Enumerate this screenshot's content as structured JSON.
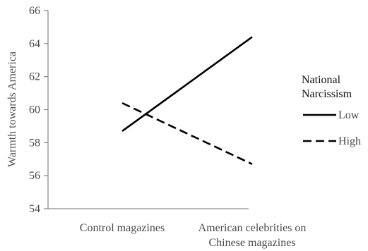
{
  "chart_data": {
    "type": "line",
    "title": "",
    "ylabel": "Warmth towards America",
    "xlabel": "",
    "categories": [
      [
        "Control magazines"
      ],
      [
        "American celebrities on",
        "Chinese magazines"
      ]
    ],
    "ylim": [
      54,
      66
    ],
    "yticks": [
      54,
      56,
      58,
      60,
      62,
      64,
      66
    ],
    "grid": false,
    "legend": {
      "title": [
        "National",
        "Narcissism"
      ],
      "placement": "right"
    },
    "series": [
      {
        "name": "Low",
        "values": [
          58.7,
          64.4
        ],
        "color": "#000000",
        "dash": "solid"
      },
      {
        "name": "High",
        "values": [
          60.4,
          56.7
        ],
        "color": "#000000",
        "dash": "dashed"
      }
    ]
  }
}
